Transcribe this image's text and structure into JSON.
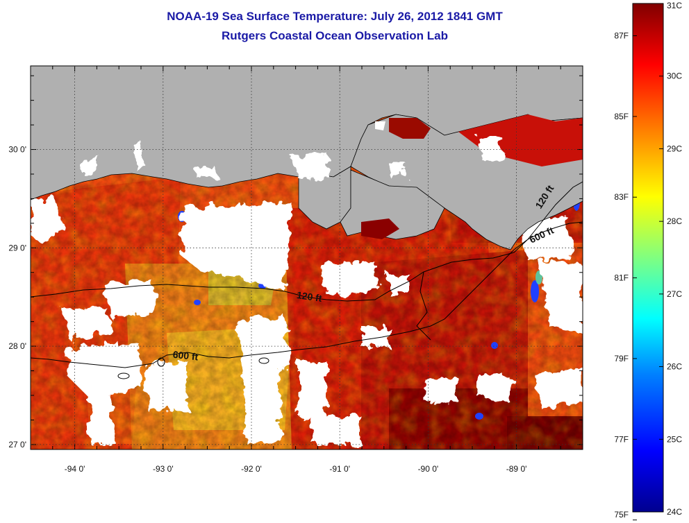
{
  "header": {
    "title": "NOAA-19 Sea Surface Temperature:  July 26, 2012 1841 GMT",
    "subtitle": "Rutgers Coastal Ocean Observation Lab"
  },
  "map": {
    "lon_range": [
      -94.5,
      -88.25
    ],
    "lat_range": [
      26.95,
      30.85
    ],
    "lon_ticks": [
      {
        "value": -94,
        "label": "-94 0'"
      },
      {
        "value": -93,
        "label": "-93 0'"
      },
      {
        "value": -92,
        "label": "-92 0'"
      },
      {
        "value": -91,
        "label": "-91 0'"
      },
      {
        "value": -90,
        "label": "-90 0'"
      },
      {
        "value": -89,
        "label": "-89 0'"
      }
    ],
    "lat_ticks": [
      {
        "value": 27,
        "label": "27 0'"
      },
      {
        "value": 28,
        "label": "28 0'"
      },
      {
        "value": 29,
        "label": "29 0'"
      },
      {
        "value": 30,
        "label": "30 0'"
      }
    ],
    "contour_labels": [
      {
        "text": "120 ft",
        "lon": -91.35,
        "lat": 28.47
      },
      {
        "text": "600 ft",
        "lon": -92.75,
        "lat": 27.87
      },
      {
        "text": "120 ft",
        "lon": -88.65,
        "lat": 29.5
      },
      {
        "text": "600 ft",
        "lon": -88.7,
        "lat": 29.1
      }
    ],
    "colors": {
      "land": "#b0b0b0",
      "cloud": "#ffffff",
      "coastline": "#000000"
    }
  },
  "colorbar": {
    "celsius_ticks": [
      {
        "value": 31,
        "label": "31C"
      },
      {
        "value": 30,
        "label": "30C"
      },
      {
        "value": 29,
        "label": "29C"
      },
      {
        "value": 28,
        "label": "28C"
      },
      {
        "value": 27,
        "label": "27C"
      },
      {
        "value": 26,
        "label": "26C"
      },
      {
        "value": 25,
        "label": "25C"
      },
      {
        "value": 24,
        "label": "24C"
      }
    ],
    "fahrenheit_ticks": [
      {
        "value": 87,
        "label": "87F"
      },
      {
        "value": 85,
        "label": "85F"
      },
      {
        "value": 83,
        "label": "83F"
      },
      {
        "value": 81,
        "label": "81F"
      },
      {
        "value": 79,
        "label": "79F"
      },
      {
        "value": 77,
        "label": "77F"
      },
      {
        "value": 75,
        "label": "75F"
      }
    ],
    "range_c": [
      24,
      31
    ],
    "colormap": [
      "#00008f",
      "#0000ff",
      "#0080ff",
      "#00ffff",
      "#80ff80",
      "#ffff00",
      "#ff8000",
      "#ff0000",
      "#800000"
    ]
  }
}
